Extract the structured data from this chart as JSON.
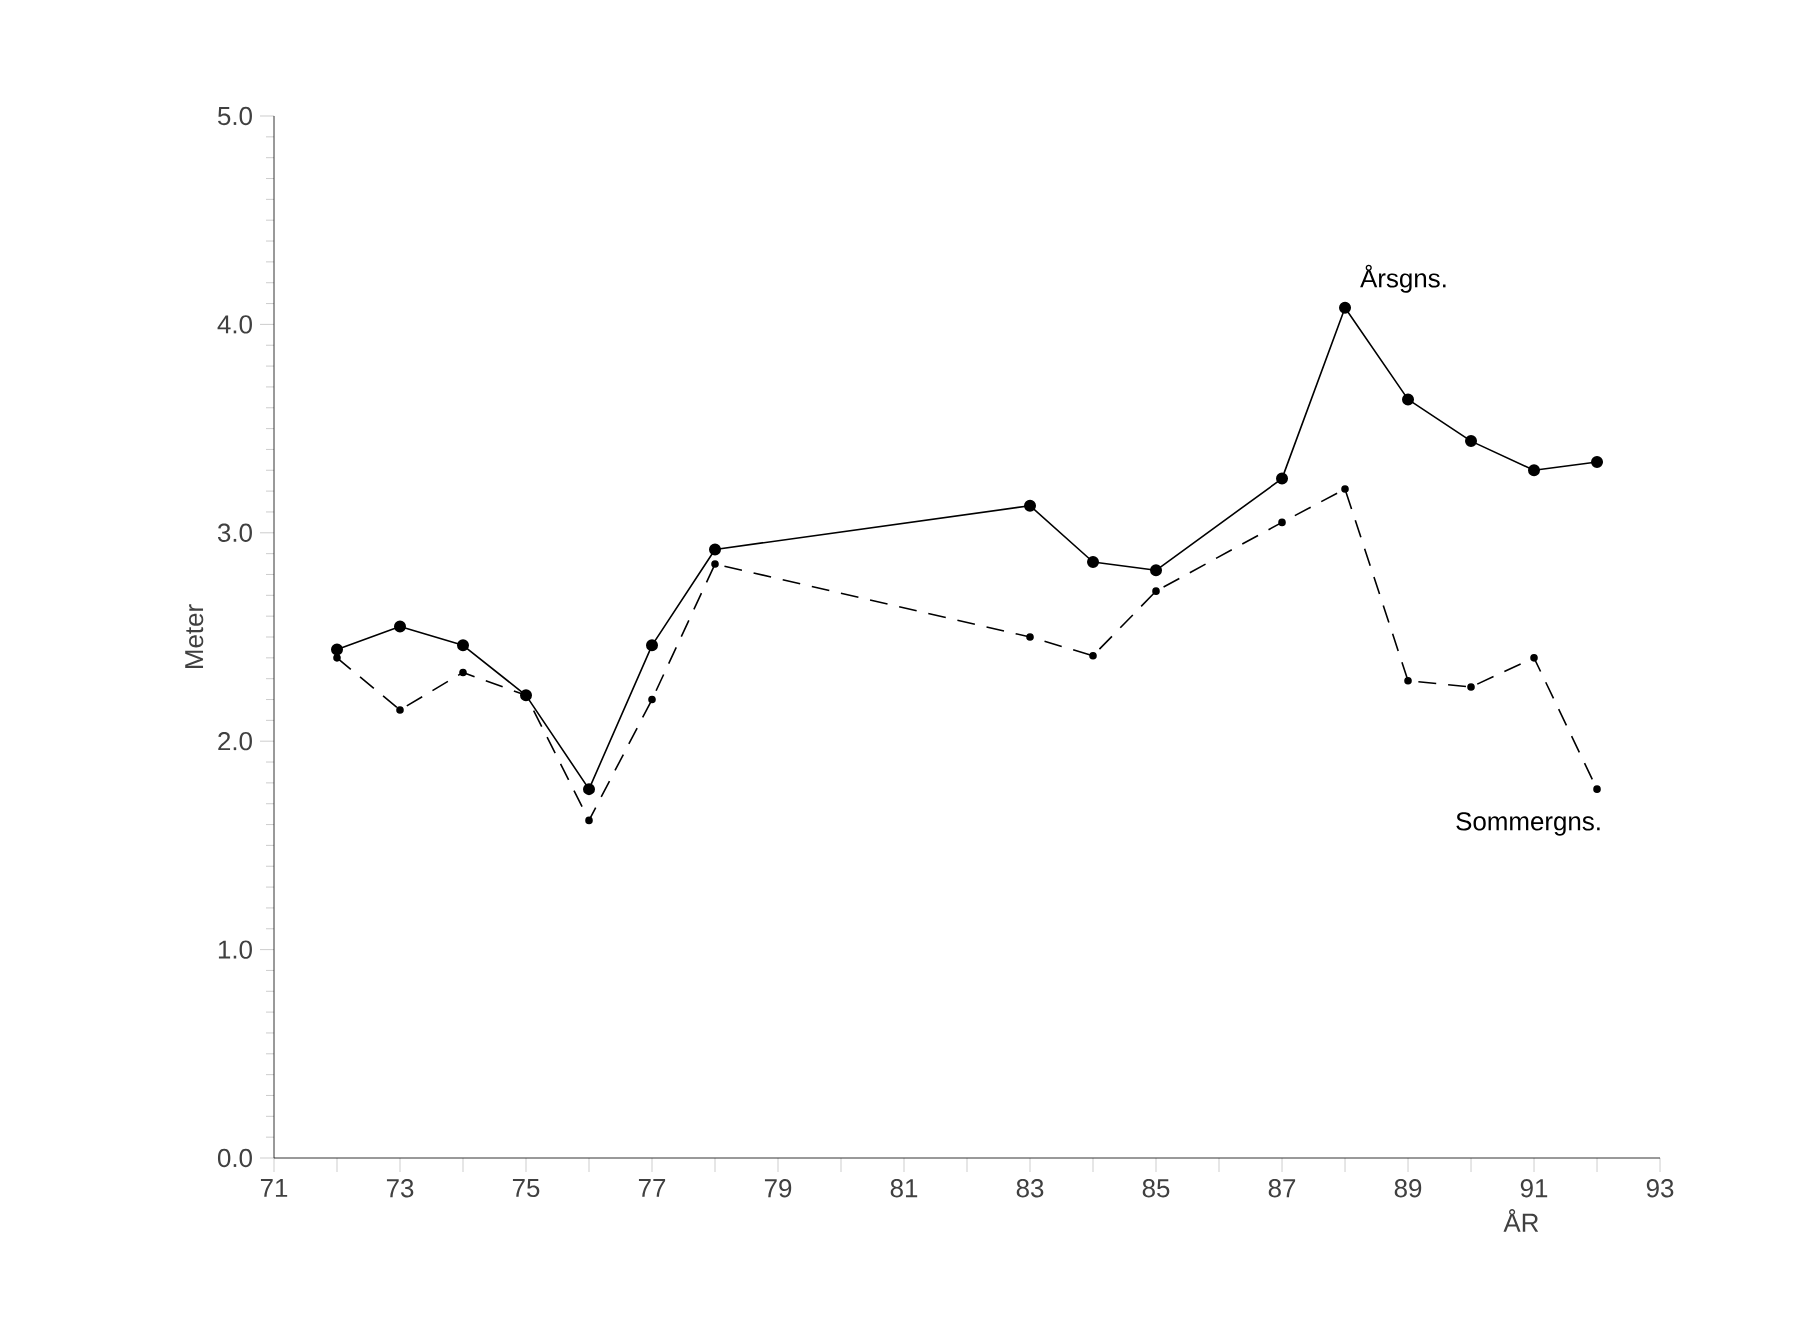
{
  "chart_data": {
    "type": "line",
    "xlabel": "ÅR",
    "ylabel": "Meter",
    "series": [
      {
        "name": "Årsgns.",
        "color": "#000000",
        "line_style": "solid",
        "x": [
          72,
          73,
          74,
          75,
          76,
          77,
          78,
          83,
          84,
          85,
          87,
          88,
          89,
          90,
          91,
          92
        ],
        "values": [
          2.44,
          2.55,
          2.46,
          2.22,
          1.77,
          2.46,
          2.92,
          3.13,
          2.86,
          2.82,
          3.26,
          4.08,
          3.64,
          3.44,
          3.3,
          3.34
        ]
      },
      {
        "name": "Sommergns.",
        "color": "#000000",
        "line_style": "dashed",
        "x": [
          72,
          73,
          74,
          75,
          76,
          77,
          78,
          83,
          84,
          85,
          87,
          88,
          89,
          90,
          91,
          92
        ],
        "values": [
          2.4,
          2.15,
          2.33,
          2.22,
          1.62,
          2.2,
          2.85,
          2.5,
          2.41,
          2.72,
          3.05,
          3.21,
          2.29,
          2.26,
          2.4,
          1.77
        ]
      }
    ],
    "marker": "circle",
    "grid": false,
    "legend": false,
    "xlim": [
      71,
      93
    ],
    "ylim": [
      0,
      5
    ],
    "xticks": [
      71,
      {
        "value": 72,
        "label": null
      },
      73,
      {
        "value": 74,
        "label": null
      },
      75,
      {
        "value": 76,
        "label": null
      },
      77,
      {
        "value": 78,
        "label": null
      },
      79,
      {
        "value": 80,
        "label": null
      },
      81,
      {
        "value": 82,
        "label": null
      },
      83,
      {
        "value": 84,
        "label": null
      },
      85,
      {
        "value": 86,
        "label": null
      },
      87,
      {
        "value": 88,
        "label": null
      },
      89,
      {
        "value": 90,
        "label": null
      },
      91,
      {
        "value": 92,
        "label": null
      },
      93
    ],
    "yticks": [
      {
        "value": 0,
        "label": "0.0"
      },
      {
        "value": 1,
        "label": "1.0"
      },
      {
        "value": 2,
        "label": "2.0"
      },
      {
        "value": 3,
        "label": "3.0"
      },
      {
        "value": 4,
        "label": "4.0"
      },
      {
        "value": 5,
        "label": "5.0"
      }
    ]
  }
}
